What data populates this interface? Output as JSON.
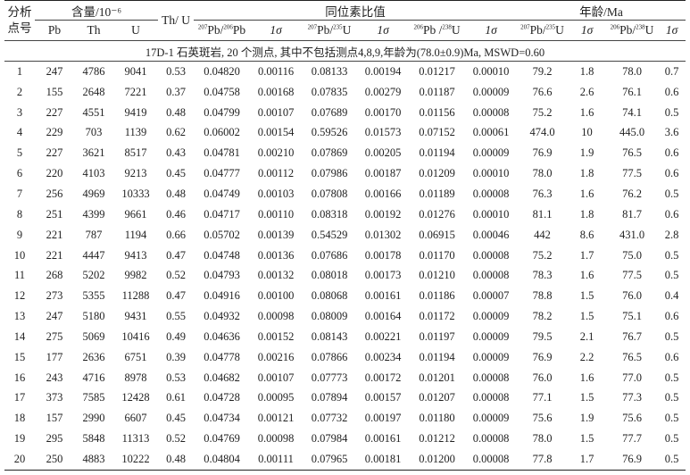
{
  "headers": {
    "sample_no": [
      "分析",
      "点号"
    ],
    "content_group": "含量/10⁻⁶",
    "pb": "Pb",
    "th": "Th",
    "u": "U",
    "th_u": "Th/ U",
    "isotope_group": "同位素比值",
    "r76": "Pb/",
    "r76_sup1": "207",
    "r76_sup2": "206",
    "r76_tail": "Pb",
    "r75": "Pb/",
    "r75_sup1": "207",
    "r75_sup2": "235",
    "r75_tail": "U",
    "r68": "Pb /",
    "r68_sup1": "206",
    "r68_sup2": "238",
    "r68_tail": "U",
    "sigma": "1σ",
    "age_group": "年龄/Ma",
    "a75": "Pb/",
    "a75_sup1": "207",
    "a75_sup2": "235",
    "a75_tail": "U",
    "a68": "Pb/",
    "a68_sup1": "206",
    "a68_sup2": "238",
    "a68_tail": "U"
  },
  "note": "17D-1 石英斑岩, 20 个测点, 其中不包括测点4,8,9,年龄为(78.0±0.9)Ma, MSWD=0.60",
  "rows": [
    [
      "1",
      "247",
      "4786",
      "9041",
      "0.53",
      "0.04820",
      "0.00116",
      "0.08133",
      "0.00194",
      "0.01217",
      "0.00010",
      "79.2",
      "1.8",
      "78.0",
      "0.7"
    ],
    [
      "2",
      "155",
      "2648",
      "7221",
      "0.37",
      "0.04758",
      "0.00168",
      "0.07835",
      "0.00279",
      "0.01187",
      "0.00009",
      "76.6",
      "2.6",
      "76.1",
      "0.6"
    ],
    [
      "3",
      "227",
      "4551",
      "9419",
      "0.48",
      "0.04799",
      "0.00107",
      "0.07689",
      "0.00170",
      "0.01156",
      "0.00008",
      "75.2",
      "1.6",
      "74.1",
      "0.5"
    ],
    [
      "4",
      "229",
      "703",
      "1139",
      "0.62",
      "0.06002",
      "0.00154",
      "0.59526",
      "0.01573",
      "0.07152",
      "0.00061",
      "474.0",
      "10",
      "445.0",
      "3.6"
    ],
    [
      "5",
      "227",
      "3621",
      "8517",
      "0.43",
      "0.04781",
      "0.00210",
      "0.07869",
      "0.00205",
      "0.01194",
      "0.00009",
      "76.9",
      "1.9",
      "76.5",
      "0.6"
    ],
    [
      "6",
      "220",
      "4103",
      "9213",
      "0.45",
      "0.04777",
      "0.00112",
      "0.07986",
      "0.00187",
      "0.01209",
      "0.00010",
      "78.0",
      "1.8",
      "77.5",
      "0.6"
    ],
    [
      "7",
      "256",
      "4969",
      "10333",
      "0.48",
      "0.04749",
      "0.00103",
      "0.07808",
      "0.00166",
      "0.01189",
      "0.00008",
      "76.3",
      "1.6",
      "76.2",
      "0.5"
    ],
    [
      "8",
      "251",
      "4399",
      "9661",
      "0.46",
      "0.04717",
      "0.00110",
      "0.08318",
      "0.00192",
      "0.01276",
      "0.00010",
      "81.1",
      "1.8",
      "81.7",
      "0.6"
    ],
    [
      "9",
      "221",
      "787",
      "1194",
      "0.66",
      "0.05702",
      "0.00139",
      "0.54529",
      "0.01302",
      "0.06915",
      "0.00046",
      "442",
      "8.6",
      "431.0",
      "2.8"
    ],
    [
      "10",
      "221",
      "4447",
      "9413",
      "0.47",
      "0.04748",
      "0.00136",
      "0.07686",
      "0.00178",
      "0.01170",
      "0.00008",
      "75.2",
      "1.7",
      "75.0",
      "0.5"
    ],
    [
      "11",
      "268",
      "5202",
      "9982",
      "0.52",
      "0.04793",
      "0.00132",
      "0.08018",
      "0.00173",
      "0.01210",
      "0.00008",
      "78.3",
      "1.6",
      "77.5",
      "0.5"
    ],
    [
      "12",
      "273",
      "5355",
      "11288",
      "0.47",
      "0.04916",
      "0.00100",
      "0.08068",
      "0.00161",
      "0.01186",
      "0.00007",
      "78.8",
      "1.5",
      "76.0",
      "0.4"
    ],
    [
      "13",
      "247",
      "5180",
      "9431",
      "0.55",
      "0.04932",
      "0.00098",
      "0.08009",
      "0.00164",
      "0.01172",
      "0.00009",
      "78.2",
      "1.5",
      "75.1",
      "0.6"
    ],
    [
      "14",
      "275",
      "5069",
      "10416",
      "0.49",
      "0.04636",
      "0.00152",
      "0.08143",
      "0.00221",
      "0.01197",
      "0.00009",
      "79.5",
      "2.1",
      "76.7",
      "0.5"
    ],
    [
      "15",
      "177",
      "2636",
      "6751",
      "0.39",
      "0.04778",
      "0.00216",
      "0.07866",
      "0.00234",
      "0.01194",
      "0.00009",
      "76.9",
      "2.2",
      "76.5",
      "0.6"
    ],
    [
      "16",
      "243",
      "4716",
      "8978",
      "0.53",
      "0.04682",
      "0.00107",
      "0.07773",
      "0.00172",
      "0.01201",
      "0.00008",
      "76.0",
      "1.6",
      "77.0",
      "0.5"
    ],
    [
      "17",
      "373",
      "7585",
      "12428",
      "0.61",
      "0.04728",
      "0.00095",
      "0.07894",
      "0.00157",
      "0.01207",
      "0.00008",
      "77.1",
      "1.5",
      "77.3",
      "0.5"
    ],
    [
      "18",
      "157",
      "2990",
      "6607",
      "0.45",
      "0.04734",
      "0.00121",
      "0.07732",
      "0.00197",
      "0.01180",
      "0.00009",
      "75.6",
      "1.9",
      "75.6",
      "0.5"
    ],
    [
      "19",
      "295",
      "5848",
      "11313",
      "0.52",
      "0.04769",
      "0.00098",
      "0.07984",
      "0.00161",
      "0.01212",
      "0.00008",
      "78.0",
      "1.5",
      "77.7",
      "0.5"
    ],
    [
      "20",
      "250",
      "4883",
      "10222",
      "0.48",
      "0.04804",
      "0.00111",
      "0.07965",
      "0.00181",
      "0.01200",
      "0.00008",
      "77.8",
      "1.7",
      "76.9",
      "0.5"
    ]
  ]
}
